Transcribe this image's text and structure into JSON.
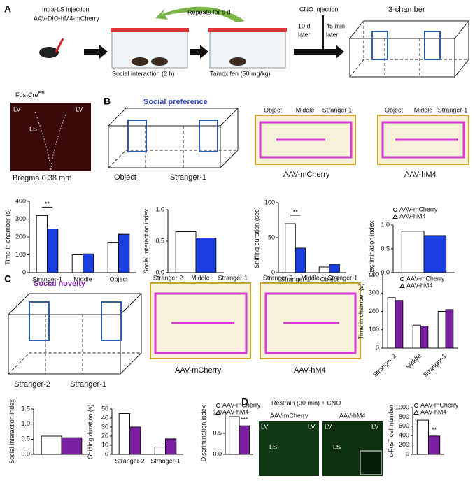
{
  "panel_a": {
    "letter": "A",
    "injection": "Intra-LS injection",
    "virus": "AAV-DIO-hM4-mCherry",
    "repeat": "Repeats for 5 d",
    "cno": "CNO injection",
    "later_days": "10 d",
    "later_days_2": "later",
    "later_min": "45 min",
    "later_min_2": "later",
    "chamber": "3-chamber",
    "social": "Social interaction (2 h)",
    "tamoxifen": "Tamoxifen (50 mg/kg)",
    "mouse_line": "Fos-Cre",
    "mouse_line_sup": "ER",
    "lv_left": "LV",
    "lv_right": "LV",
    "ls": "LS",
    "bregma": "Bregma 0.38 mm"
  },
  "panel_b": {
    "letter": "B",
    "title": "Social preference",
    "left": "Object",
    "right": "Stranger-1",
    "track_labels": [
      "Object",
      "Middle",
      "Stranger-1"
    ],
    "track_1": "AAV-mCherry",
    "track_2": "AAV-hM4",
    "track_labels_2": [
      "Object",
      "Middle",
      "Stranger-1"
    ]
  },
  "panel_c": {
    "letter": "C",
    "title": "Social novelty",
    "left": "Stranger-2",
    "right": "Stranger-1",
    "track_labels": [
      "Stranger-2",
      "Middle",
      "Stranger-1"
    ],
    "track_1": "AAV-mCherry",
    "track_2": "AAV-hM4",
    "track_labels_2": [
      "Stranger-2",
      "Middle",
      "Stranger-1"
    ]
  },
  "panel_d": {
    "letter": "D",
    "title": "Restrain (30 min) + CNO",
    "image_1": "AAV-mCherry",
    "image_2": "AAV-hM4",
    "labels_1": [
      "LV",
      "LV",
      "LS"
    ],
    "labels_2": [
      "LV",
      "LV",
      "LS"
    ]
  },
  "chart_data": [
    {
      "type": "bar",
      "ylabel": "Time in chamber (s)",
      "categories": [
        "Stranger-1",
        "Middle",
        "Object"
      ],
      "series": [
        {
          "name": "AAV-mCherry",
          "color": "#ffffff",
          "values": [
            320,
            100,
            170
          ]
        },
        {
          "name": "AAV-hM4",
          "color": "#1a3fe0",
          "values": [
            245,
            105,
            215
          ]
        }
      ],
      "ylim": [
        0,
        400
      ],
      "yticks": [
        0,
        100,
        200,
        300,
        400
      ],
      "annotation": "**",
      "bracket": true,
      "legend": false
    },
    {
      "type": "bar",
      "ylabel": "Social interaction index",
      "categories": [
        null
      ],
      "series": [
        {
          "name": "AAV-mCherry",
          "color": "#ffffff",
          "values": [
            0.65
          ]
        },
        {
          "name": "AAV-hM4",
          "color": "#1a3fe0",
          "values": [
            0.55
          ]
        }
      ],
      "ylim": [
        0,
        1
      ],
      "yticks": [
        {
          "value": 0,
          "label": "0.0"
        },
        0.5,
        {
          "value": 1,
          "label": "1.0"
        }
      ],
      "legend": false
    },
    {
      "type": "bar",
      "ylabel": "Sniffing duration (sec)",
      "categories": [
        "Stranger-1",
        "Object"
      ],
      "series": [
        {
          "name": "AAV-mCherry",
          "color": "#ffffff",
          "values": [
            70,
            8
          ]
        },
        {
          "name": "AAV-hM4",
          "color": "#1a3fe0",
          "values": [
            35,
            12
          ]
        }
      ],
      "ylim": [
        0,
        100
      ],
      "yticks": [
        0,
        50,
        100
      ],
      "annotation": "**",
      "bracket": true,
      "legend": false
    },
    {
      "type": "bar",
      "ylabel": "Discrimination index",
      "categories": [
        null
      ],
      "series": [
        {
          "name": "AAV-mCherry",
          "color": "#ffffff",
          "values": [
            0.87
          ]
        },
        {
          "name": "AAV-hM4",
          "color": "#1a3fe0",
          "values": [
            0.78
          ]
        }
      ],
      "ylim": [
        0,
        1
      ],
      "yticks": [
        {
          "value": 0,
          "label": "0.0"
        },
        0.5,
        {
          "value": 1,
          "label": "1.0"
        }
      ],
      "legend": true
    },
    {
      "type": "bar",
      "ylabel": "Time in chamber (s)",
      "categories": [
        "Stranger-2",
        "Middle",
        "Stranger-1"
      ],
      "series": [
        {
          "name": "AAV-mCherry",
          "color": "#ffffff",
          "values": [
            275,
            125,
            200
          ]
        },
        {
          "name": "AAV-hM4",
          "color": "#7b1fa2",
          "values": [
            260,
            120,
            210
          ]
        }
      ],
      "ylim": [
        0,
        400
      ],
      "yticks": [
        0,
        100,
        200,
        300,
        400
      ],
      "legend": true
    },
    {
      "type": "bar",
      "ylabel": "Social interaction index",
      "categories": [
        null
      ],
      "series": [
        {
          "name": "AAV-mCherry",
          "color": "#ffffff",
          "values": [
            0.6
          ]
        },
        {
          "name": "AAV-hM4",
          "color": "#7b1fa2",
          "values": [
            0.55
          ]
        }
      ],
      "ylim": [
        0,
        1.5
      ],
      "yticks": [
        {
          "value": 0,
          "label": "0.0"
        },
        0.5,
        {
          "value": 1,
          "label": "1.0"
        },
        1.5
      ],
      "legend": false
    },
    {
      "type": "bar",
      "ylabel": "Sniffing duration (s)",
      "categories": [
        "Stranger-2",
        "Stranger-1"
      ],
      "series": [
        {
          "name": "AAV-mCherry",
          "color": "#ffffff",
          "values": [
            45,
            8
          ]
        },
        {
          "name": "AAV-hM4",
          "color": "#7b1fa2",
          "values": [
            30,
            17
          ]
        }
      ],
      "ylim": [
        0,
        50
      ],
      "yticks": [
        0,
        10,
        20,
        30,
        40,
        50
      ],
      "legend": false
    },
    {
      "type": "bar",
      "ylabel": "Discrimination index",
      "categories": [
        null
      ],
      "series": [
        {
          "name": "AAV-mCherry",
          "color": "#ffffff",
          "values": [
            0.9
          ]
        },
        {
          "name": "AAV-hM4",
          "color": "#7b1fa2",
          "values": [
            0.68
          ]
        }
      ],
      "ylim": [
        0,
        1
      ],
      "yticks": [
        {
          "value": 0,
          "label": "0.0"
        },
        0.5,
        {
          "value": 1,
          "label": "1.0"
        }
      ],
      "annotation": "***",
      "legend": true
    },
    {
      "type": "bar",
      "ylabel": "c-Fos",
      "ylabel_sup": "+",
      "ylabel_end": " cell number",
      "categories": [
        null
      ],
      "series": [
        {
          "name": "AAV-mCherry",
          "color": "#ffffff",
          "values": [
            730
          ]
        },
        {
          "name": "AAV-hM4",
          "color": "#7b1fa2",
          "values": [
            390
          ]
        }
      ],
      "ylim": [
        0,
        1000
      ],
      "yticks": [
        0,
        200,
        400,
        600,
        800,
        1000
      ],
      "annotation": "**",
      "legend": true
    }
  ]
}
